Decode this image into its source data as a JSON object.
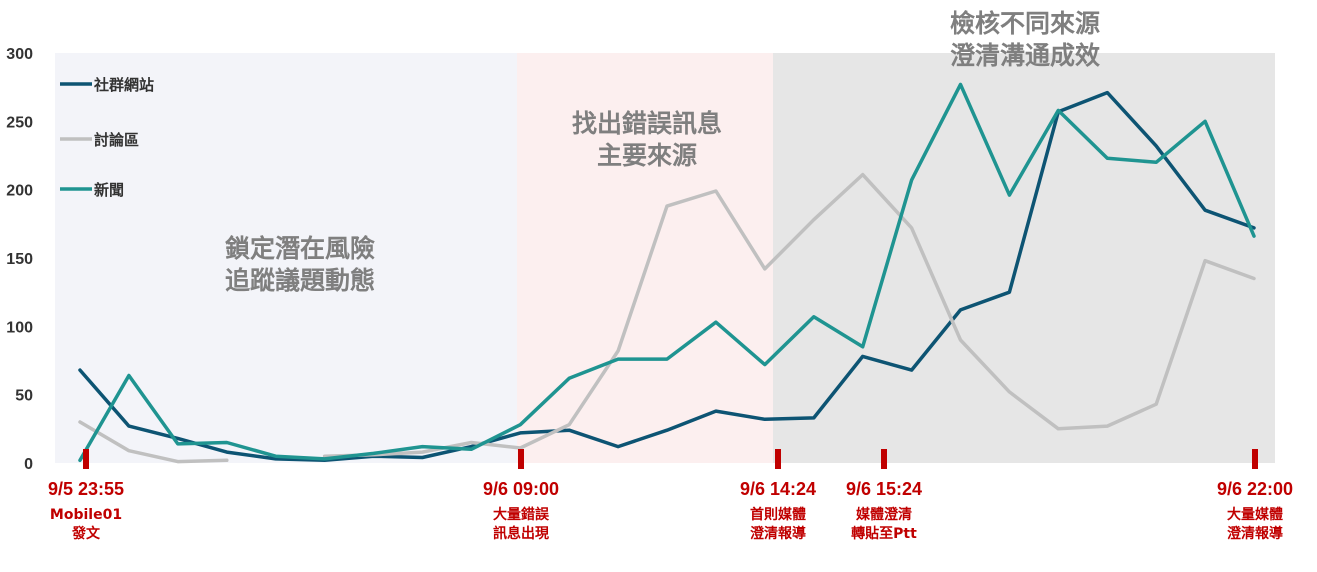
{
  "chart_data": {
    "type": "line",
    "ylim": [
      0,
      300
    ],
    "yticks": [
      "0",
      "50",
      "100",
      "150",
      "200",
      "250",
      "300"
    ],
    "grid": false,
    "legend_position": "top-left",
    "series": [
      {
        "name": "社群網站",
        "color": "#0d5473",
        "values": [
          68,
          27,
          18,
          8,
          3,
          2,
          5,
          4,
          12,
          22,
          24,
          12,
          24,
          38,
          32,
          33,
          78,
          68,
          112,
          125,
          257,
          271,
          232,
          185,
          172
        ]
      },
      {
        "name": "討論區",
        "color": "#c0c0c0",
        "values": [
          30,
          9,
          1,
          2,
          null,
          5,
          6,
          8,
          15,
          11,
          28,
          82,
          188,
          199,
          142,
          178,
          211,
          172,
          90,
          52,
          25,
          27,
          43,
          148,
          135
        ]
      },
      {
        "name": "新聞",
        "color": "#1f9491",
        "values": [
          2,
          64,
          14,
          15,
          5,
          3,
          7,
          12,
          10,
          28,
          62,
          76,
          76,
          103,
          72,
          107,
          85,
          207,
          277,
          196,
          258,
          223,
          220,
          250,
          166
        ]
      }
    ],
    "phases": [
      {
        "label_lines": [
          "鎖定潛在風險",
          "追蹤議題動態"
        ],
        "color": "#f3f4f9"
      },
      {
        "label_lines": [
          "找出錯誤訊息",
          "主要來源"
        ],
        "color": "#fcefef"
      },
      {
        "label_lines": [
          "檢核不同來源",
          "澄清溝通成效"
        ],
        "color": "#e6e6e6"
      }
    ],
    "events": [
      {
        "time": "9/5 23:55",
        "desc_lines": [
          "Mobile01",
          "發文"
        ]
      },
      {
        "time": "9/6 09:00",
        "desc_lines": [
          "大量錯誤",
          "訊息出現"
        ]
      },
      {
        "time": "9/6 14:24",
        "desc_lines": [
          "首則媒體",
          "澄清報導"
        ]
      },
      {
        "time": "9/6 15:24",
        "desc_lines": [
          "媒體澄清",
          "轉貼至Ptt"
        ]
      },
      {
        "time": "9/6 22:00",
        "desc_lines": [
          "大量媒體",
          "澄清報導"
        ]
      }
    ],
    "event_color": "#c00000"
  }
}
